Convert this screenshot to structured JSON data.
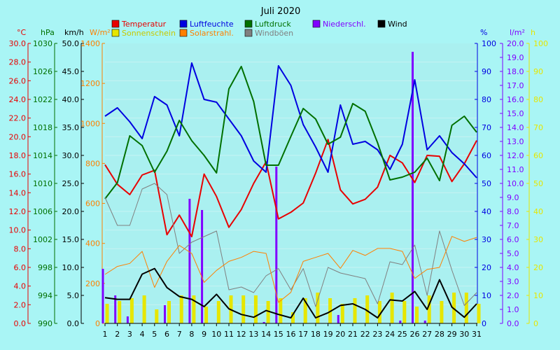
{
  "chart_data": {
    "type": "line",
    "title": "Juli 2020",
    "x": [
      1,
      2,
      3,
      4,
      5,
      6,
      7,
      8,
      9,
      10,
      11,
      12,
      13,
      14,
      15,
      16,
      17,
      18,
      19,
      20,
      21,
      22,
      23,
      24,
      25,
      26,
      27,
      28,
      29,
      30,
      31
    ],
    "colors": {
      "background": "#a9f5f5",
      "plot": "#aaf0f0",
      "temperature": "#e80000",
      "humidity": "#0000e0",
      "pressure": "#007000",
      "precipitation": "#8000ff",
      "wind": "#000000",
      "sunshine": "#e6e600",
      "solar": "#ff8000",
      "gusts": "#808080"
    },
    "axes": [
      {
        "unit": "°C",
        "min": 0,
        "max": 30,
        "ticks": [
          "0.0",
          "2.0",
          "4.0",
          "6.0",
          "8.0",
          "10.0",
          "12.0",
          "14.0",
          "16.0",
          "18.0",
          "20.0",
          "22.0",
          "24.0",
          "26.0",
          "28.0",
          "30.0"
        ],
        "color": "#e80000"
      },
      {
        "unit": "hPa",
        "min": 990,
        "max": 1030,
        "ticks": [
          "990",
          "994",
          "998",
          "1002",
          "1006",
          "1010",
          "1014",
          "1018",
          "1022",
          "1026",
          "1030"
        ],
        "color": "#007000"
      },
      {
        "unit": "km/h",
        "min": 0,
        "max": 50,
        "ticks": [
          "0.0",
          "5.0",
          "10.0",
          "15.0",
          "20.0",
          "25.0",
          "30.0",
          "35.0",
          "40.0",
          "45.0",
          "50.0"
        ],
        "color": "#000000"
      },
      {
        "unit": "W/m²",
        "min": 0,
        "max": 1400,
        "ticks": [
          "0",
          "200",
          "400",
          "600",
          "800",
          "1000",
          "1200",
          "1400"
        ],
        "color": "#ff8000"
      },
      {
        "unit": "%",
        "min": 0,
        "max": 100,
        "ticks": [
          "0",
          "10",
          "20",
          "30",
          "40",
          "50",
          "60",
          "70",
          "80",
          "90",
          "100"
        ],
        "color": "#0000e0"
      },
      {
        "unit": "l/m²",
        "min": 0,
        "max": 20,
        "ticks": [
          "0.0",
          "1.0",
          "2.0",
          "3.0",
          "4.0",
          "5.0",
          "6.0",
          "7.0",
          "8.0",
          "9.0",
          "10.0",
          "11.0",
          "12.0",
          "13.0",
          "14.0",
          "15.0",
          "16.0",
          "17.0",
          "18.0",
          "19.0",
          "20.0"
        ],
        "color": "#8000ff"
      },
      {
        "unit": "h",
        "min": 0,
        "max": 100,
        "ticks": [
          "0",
          "10",
          "20",
          "30",
          "40",
          "50",
          "60",
          "70",
          "80",
          "90",
          "100"
        ],
        "color": "#e6e600"
      }
    ],
    "legend": [
      {
        "label": "Temperatur",
        "color": "#e80000"
      },
      {
        "label": "Luftfeuchte",
        "color": "#0000e0"
      },
      {
        "label": "Luftdruck",
        "color": "#007000"
      },
      {
        "label": "Niederschl.",
        "color": "#8000ff"
      },
      {
        "label": "Wind",
        "color": "#000000"
      },
      {
        "label": "Sonnenschein",
        "color": "#e6e600"
      },
      {
        "label": "Solarstrahl.",
        "color": "#ff8000"
      },
      {
        "label": "Windböen",
        "color": "#808080"
      }
    ],
    "series": [
      {
        "key": "temperature",
        "name": "Temperatur",
        "axis": 0,
        "kind": "line",
        "width": 2,
        "values": [
          17.0,
          14.9,
          13.8,
          15.9,
          16.4,
          9.5,
          11.6,
          9.3,
          16.0,
          13.6,
          10.3,
          12.2,
          15.0,
          17.3,
          11.2,
          11.9,
          12.9,
          16.1,
          19.7,
          14.3,
          12.8,
          13.3,
          14.6,
          18.0,
          17.2,
          15.1,
          18.0,
          17.9,
          15.2,
          17.1,
          19.6
        ]
      },
      {
        "key": "humidity",
        "name": "Luftfeuchte",
        "axis": 4,
        "kind": "line",
        "width": 2,
        "values": [
          74,
          77,
          72,
          66,
          81,
          78,
          67,
          93,
          80,
          79,
          73,
          67,
          58,
          54,
          92,
          85,
          71,
          63,
          54,
          78,
          64,
          65,
          62,
          55,
          64,
          87,
          62,
          67,
          61,
          57,
          52
        ]
      },
      {
        "key": "pressure",
        "name": "Luftdruck",
        "axis": 1,
        "kind": "line",
        "width": 2,
        "values": [
          1007.8,
          1010.1,
          1016.8,
          1015.4,
          1011.6,
          1014.6,
          1019.0,
          1016.1,
          1014.0,
          1011.5,
          1023.5,
          1026.7,
          1021.7,
          1012.6,
          1012.6,
          1016.7,
          1020.7,
          1019.2,
          1015.6,
          1016.6,
          1021.4,
          1020.3,
          1015.8,
          1010.5,
          1010.9,
          1011.6,
          1013.6,
          1010.4,
          1018.3,
          1019.6,
          1017.3
        ]
      },
      {
        "key": "gusts",
        "name": "Windböen",
        "axis": 2,
        "kind": "line",
        "width": 1,
        "values": [
          22.5,
          17.5,
          17.5,
          24.0,
          25.0,
          23.0,
          12.5,
          14.5,
          15.5,
          16.5,
          6.0,
          6.5,
          5.5,
          8.5,
          9.8,
          6.0,
          9.8,
          3.0,
          10.0,
          9.0,
          8.5,
          8.0,
          3.5,
          11.0,
          10.5,
          14.0,
          5.0,
          16.5,
          9.5,
          3.2,
          5.5
        ]
      },
      {
        "key": "solar",
        "name": "Solarstrahl.",
        "axis": 3,
        "kind": "line",
        "width": 1,
        "values": [
          245,
          285,
          300,
          360,
          180,
          310,
          390,
          350,
          205,
          265,
          310,
          330,
          360,
          350,
          105,
          155,
          310,
          330,
          350,
          275,
          365,
          340,
          375,
          375,
          360,
          225,
          270,
          280,
          435,
          410,
          430
        ]
      },
      {
        "key": "wind",
        "name": "Wind",
        "axis": 2,
        "kind": "line",
        "width": 2,
        "values": [
          4.6,
          4.3,
          4.3,
          8.8,
          9.8,
          6.4,
          4.8,
          4.3,
          3.0,
          5.2,
          2.6,
          1.6,
          1.1,
          2.3,
          1.6,
          1.0,
          4.5,
          1.0,
          1.9,
          3.2,
          3.5,
          2.5,
          1.0,
          4.2,
          4.0,
          5.7,
          2.5,
          7.8,
          2.9,
          1.1,
          3.5
        ]
      }
    ],
    "bars": [
      {
        "key": "sunshine",
        "name": "Sonnenschein",
        "axis": 6,
        "width": 5,
        "offset": 3,
        "values": [
          7,
          8,
          9,
          10,
          5,
          8,
          10,
          10,
          6,
          8,
          10,
          10,
          10,
          8,
          9,
          4,
          9,
          11,
          9,
          7,
          9,
          10,
          8,
          11,
          8,
          6,
          10,
          8,
          11,
          11,
          7
        ]
      },
      {
        "key": "precipitation",
        "name": "Niederschl.",
        "axis": 5,
        "width": 3,
        "offset": -3,
        "values": [
          3.9,
          2.0,
          0.5,
          0.0,
          0.0,
          1.3,
          0.0,
          8.9,
          8.1,
          0.0,
          0.0,
          0.0,
          0.0,
          0.1,
          11.2,
          0.0,
          0.0,
          0.0,
          0.0,
          0.6,
          0.0,
          0.0,
          0.0,
          0.0,
          0.2,
          19.4,
          0.2,
          0.0,
          0.0,
          0.0,
          0.0
        ]
      }
    ]
  }
}
